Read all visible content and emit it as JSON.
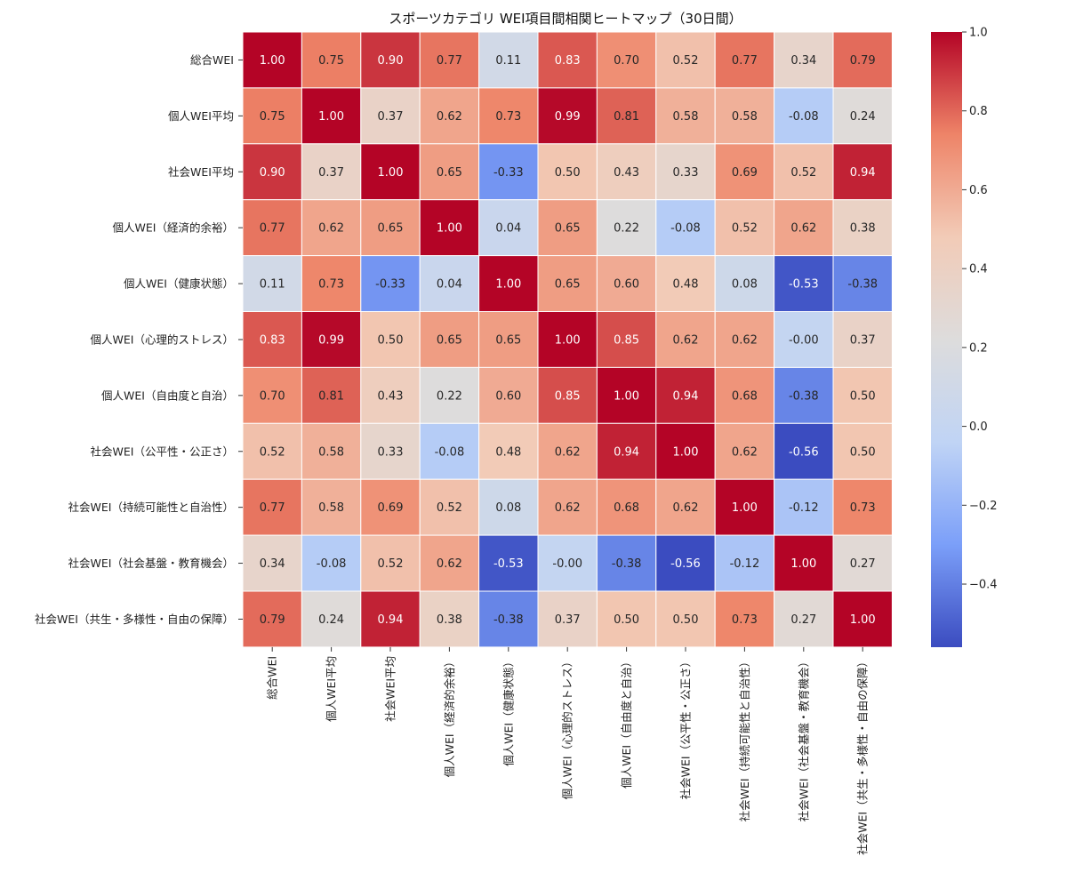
{
  "chart_data": {
    "type": "heatmap",
    "title": "スポーツカテゴリ WEI項目間相関ヒートマップ（30日間）",
    "labels": [
      "総合WEI",
      "個人WEI平均",
      "社会WEI平均",
      "個人WEI（経済的余裕）",
      "個人WEI（健康状態）",
      "個人WEI（心理的ストレス）",
      "個人WEI（自由度と自治）",
      "社会WEI（公平性・公正さ）",
      "社会WEI（持続可能性と自治性）",
      "社会WEI（社会基盤・教育機会）",
      "社会WEI（共生・多様性・自由の保障）"
    ],
    "values": [
      [
        1.0,
        0.75,
        0.9,
        0.77,
        0.11,
        0.83,
        0.7,
        0.52,
        0.77,
        0.34,
        0.79
      ],
      [
        0.75,
        1.0,
        0.37,
        0.62,
        0.73,
        0.99,
        0.81,
        0.58,
        0.58,
        -0.08,
        0.24
      ],
      [
        0.9,
        0.37,
        1.0,
        0.65,
        -0.33,
        0.5,
        0.43,
        0.33,
        0.69,
        0.52,
        0.94
      ],
      [
        0.77,
        0.62,
        0.65,
        1.0,
        0.04,
        0.65,
        0.22,
        -0.08,
        0.52,
        0.62,
        0.38
      ],
      [
        0.11,
        0.73,
        -0.33,
        0.04,
        1.0,
        0.65,
        0.6,
        0.48,
        0.08,
        -0.53,
        -0.38
      ],
      [
        0.83,
        0.99,
        0.5,
        0.65,
        0.65,
        1.0,
        0.85,
        0.62,
        0.62,
        -0.0,
        0.37
      ],
      [
        0.7,
        0.81,
        0.43,
        0.22,
        0.6,
        0.85,
        1.0,
        0.94,
        0.68,
        -0.38,
        0.5
      ],
      [
        0.52,
        0.58,
        0.33,
        -0.08,
        0.48,
        0.62,
        0.94,
        1.0,
        0.62,
        -0.56,
        0.5
      ],
      [
        0.77,
        0.58,
        0.69,
        0.52,
        0.08,
        0.62,
        0.68,
        0.62,
        1.0,
        -0.12,
        0.73
      ],
      [
        0.34,
        -0.08,
        0.52,
        0.62,
        -0.53,
        -0.0,
        -0.38,
        -0.56,
        -0.12,
        1.0,
        0.27
      ],
      [
        0.79,
        0.24,
        0.94,
        0.38,
        -0.38,
        0.37,
        0.5,
        0.5,
        0.73,
        0.27,
        1.0
      ]
    ],
    "cell_labels": [
      [
        "1.00",
        "0.75",
        "0.90",
        "0.77",
        "0.11",
        "0.83",
        "0.70",
        "0.52",
        "0.77",
        "0.34",
        "0.79"
      ],
      [
        "0.75",
        "1.00",
        "0.37",
        "0.62",
        "0.73",
        "0.99",
        "0.81",
        "0.58",
        "0.58",
        "-0.08",
        "0.24"
      ],
      [
        "0.90",
        "0.37",
        "1.00",
        "0.65",
        "-0.33",
        "0.50",
        "0.43",
        "0.33",
        "0.69",
        "0.52",
        "0.94"
      ],
      [
        "0.77",
        "0.62",
        "0.65",
        "1.00",
        "0.04",
        "0.65",
        "0.22",
        "-0.08",
        "0.52",
        "0.62",
        "0.38"
      ],
      [
        "0.11",
        "0.73",
        "-0.33",
        "0.04",
        "1.00",
        "0.65",
        "0.60",
        "0.48",
        "0.08",
        "-0.53",
        "-0.38"
      ],
      [
        "0.83",
        "0.99",
        "0.50",
        "0.65",
        "0.65",
        "1.00",
        "0.85",
        "0.62",
        "0.62",
        "-0.00",
        "0.37"
      ],
      [
        "0.70",
        "0.81",
        "0.43",
        "0.22",
        "0.60",
        "0.85",
        "1.00",
        "0.94",
        "0.68",
        "-0.38",
        "0.50"
      ],
      [
        "0.52",
        "0.58",
        "0.33",
        "-0.08",
        "0.48",
        "0.62",
        "0.94",
        "1.00",
        "0.62",
        "-0.56",
        "0.50"
      ],
      [
        "0.77",
        "0.58",
        "0.69",
        "0.52",
        "0.08",
        "0.62",
        "0.68",
        "0.62",
        "1.00",
        "-0.12",
        "0.73"
      ],
      [
        "0.34",
        "-0.08",
        "0.52",
        "0.62",
        "-0.53",
        "-0.00",
        "-0.38",
        "-0.56",
        "-0.12",
        "1.00",
        "0.27"
      ],
      [
        "0.79",
        "0.24",
        "0.94",
        "0.38",
        "-0.38",
        "0.37",
        "0.50",
        "0.50",
        "0.73",
        "0.27",
        "1.00"
      ]
    ],
    "colormap": "coolwarm",
    "colormap_stops": [
      "#3b4cc0",
      "#7b9ff9",
      "#c0d4f5",
      "#dddcdc",
      "#f2cbb7",
      "#ee8468",
      "#b40426"
    ],
    "vmin": -0.56,
    "vmax": 1.0,
    "colorbar_ticks": [
      1.0,
      0.8,
      0.6,
      0.4,
      0.2,
      0.0,
      -0.2,
      -0.4
    ],
    "colorbar_tick_labels": [
      "1.0",
      "0.8",
      "0.6",
      "0.4",
      "0.2",
      "0.0",
      "−0.2",
      "−0.4"
    ]
  }
}
